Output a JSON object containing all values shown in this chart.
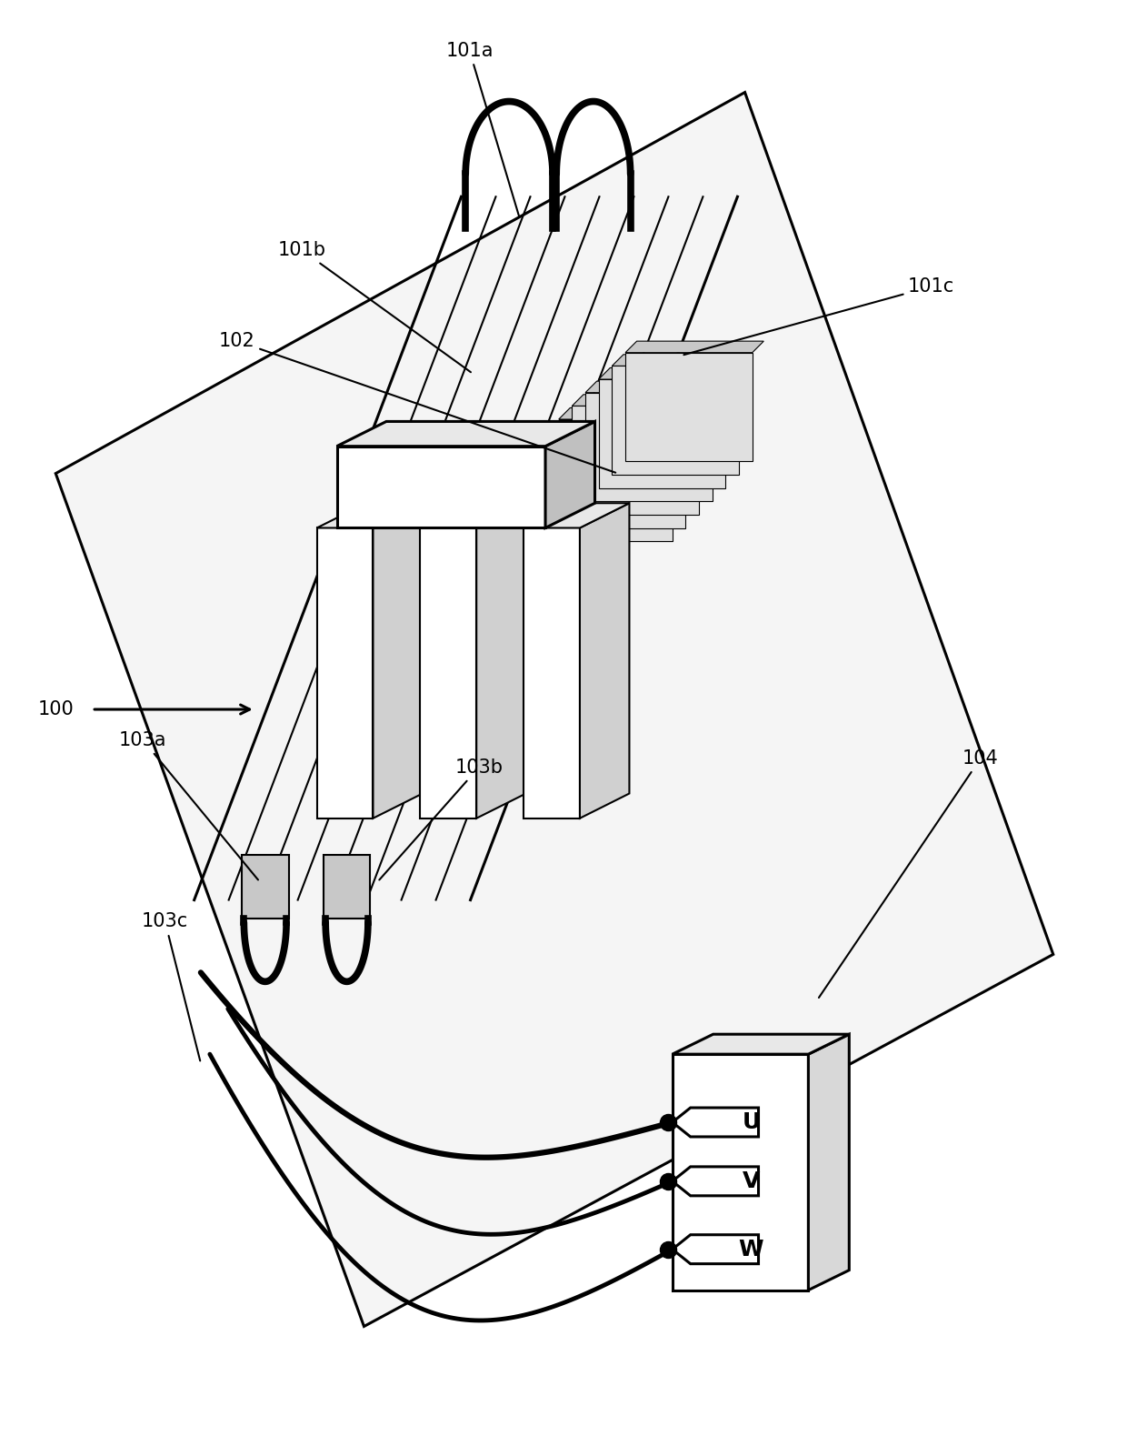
{
  "bg_color": "#ffffff",
  "label_fontsize": 15,
  "uvw_labels": [
    "U",
    "V",
    "W"
  ],
  "plane_color": "#f5f5f5",
  "lam_face_color": "#e0e0e0",
  "lam_top_color": "#c8c8c8",
  "tooth_face_color": "#ffffff",
  "tooth_side_color": "#d0d0d0",
  "yoke_face_color": "#ffffff",
  "yoke_side_color": "#c0c0c0",
  "term_face_color": "#ffffff",
  "term_side_color": "#d8d8d8",
  "coil_box_color": "#c8c8c8"
}
